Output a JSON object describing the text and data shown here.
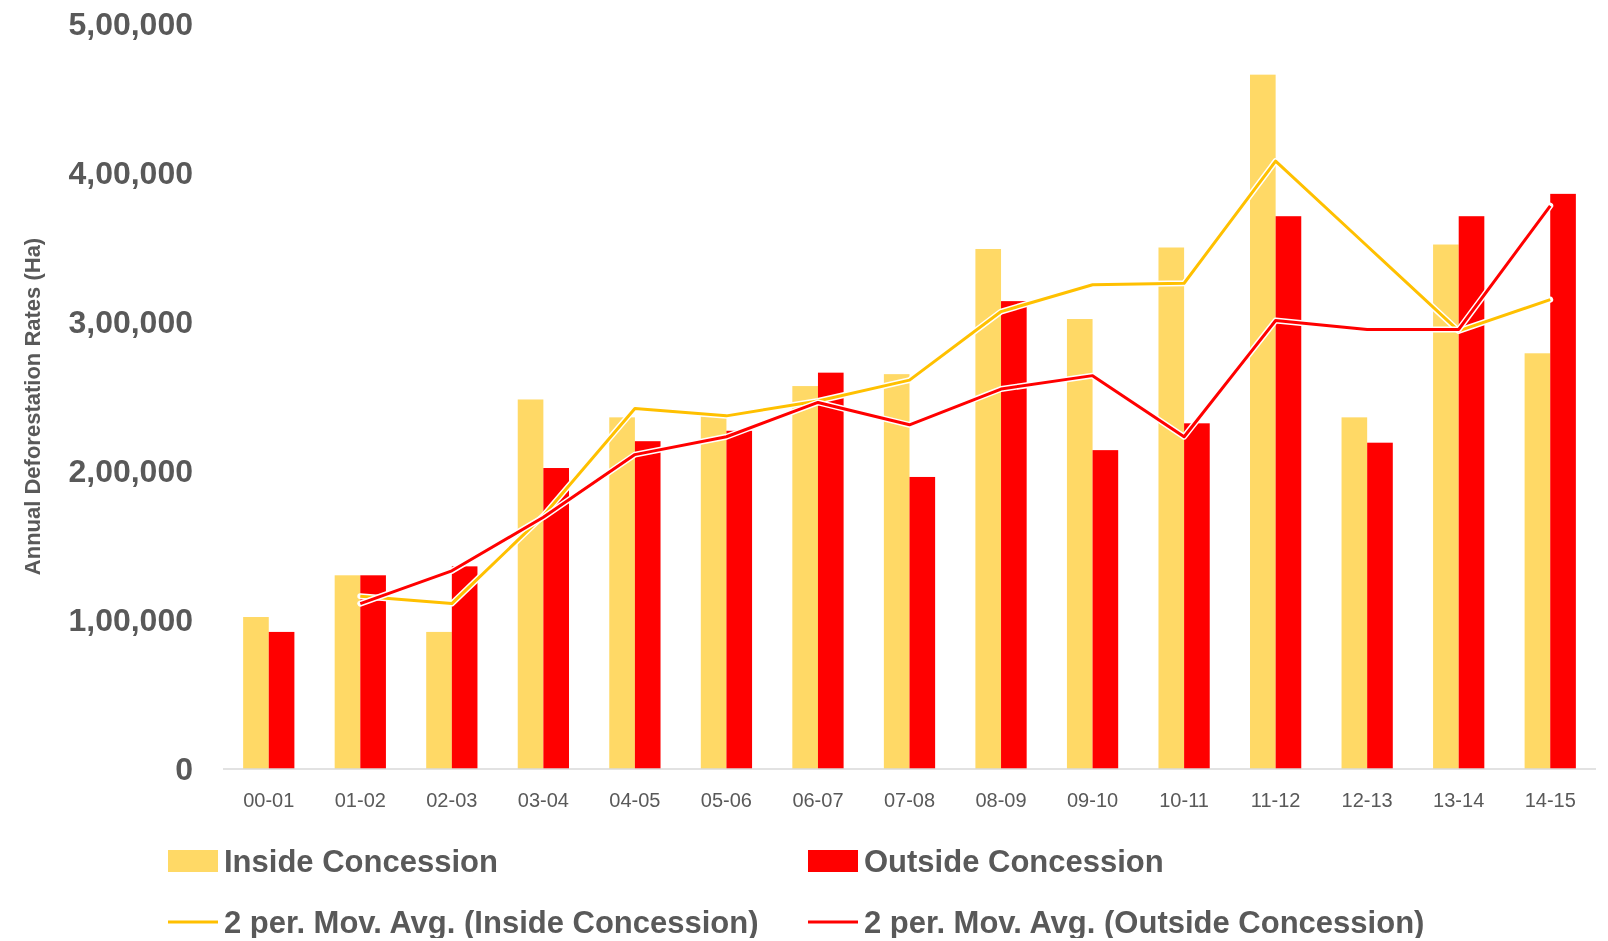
{
  "chart_data": {
    "type": "bar",
    "ylabel": "Annual Deforestation Rates (Ha)",
    "categories": [
      "00-01",
      "01-02",
      "02-03",
      "03-04",
      "04-05",
      "05-06",
      "06-07",
      "07-08",
      "08-09",
      "09-10",
      "10-11",
      "11-12",
      "12-13",
      "13-14",
      "14-15"
    ],
    "series": [
      {
        "name": "Inside Concession",
        "color": "#ffd966",
        "values": [
          102000,
          130000,
          92000,
          248000,
          236000,
          238000,
          257000,
          265000,
          349000,
          302000,
          350000,
          466000,
          236000,
          352000,
          279000
        ]
      },
      {
        "name": "Outside Concession",
        "color": "#ff0000",
        "values": [
          92000,
          130000,
          136000,
          202000,
          220000,
          227000,
          266000,
          196000,
          314000,
          214000,
          232000,
          371000,
          219000,
          371000,
          386000
        ]
      },
      {
        "name": "2 per. Mov. Avg. (Inside Concession)",
        "type": "line",
        "color": "#ffc000",
        "values": [
          null,
          116000,
          111000,
          170000,
          242000,
          237000,
          247000,
          261000,
          307000,
          325000,
          326000,
          408000,
          351000,
          294000,
          315000
        ]
      },
      {
        "name": "2 per. Mov. Avg. (Outside Concession)",
        "type": "line",
        "color": "#ff0000",
        "values": [
          null,
          111000,
          133000,
          169000,
          211000,
          223000,
          246000,
          231000,
          255000,
          264000,
          223000,
          301000,
          295000,
          295000,
          378000
        ]
      }
    ],
    "ylim": [
      0,
      500000
    ],
    "yticks": [
      {
        "value": 0,
        "label": "0"
      },
      {
        "value": 100000,
        "label": "1,00,000"
      },
      {
        "value": 200000,
        "label": "2,00,000"
      },
      {
        "value": 300000,
        "label": "3,00,000"
      },
      {
        "value": 400000,
        "label": "4,00,000"
      },
      {
        "value": 500000,
        "label": "5,00,000"
      }
    ],
    "legend": "bottom",
    "grid": false
  }
}
